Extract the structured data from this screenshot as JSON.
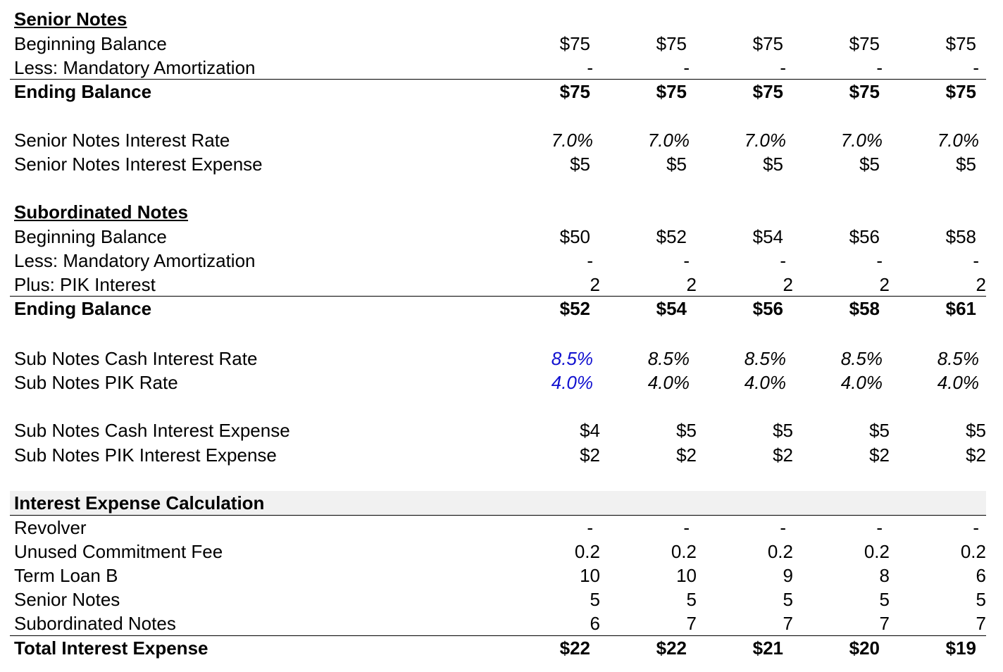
{
  "senior_notes": {
    "header": "Senior Notes",
    "beginning_balance": {
      "label": "Beginning Balance",
      "values": [
        "$75",
        "$75",
        "$75",
        "$75",
        "$75"
      ]
    },
    "amortization": {
      "label": "Less: Mandatory Amortization",
      "values": [
        "-",
        "-",
        "-",
        "-",
        "-"
      ]
    },
    "ending_balance": {
      "label": "Ending Balance",
      "values": [
        "$75",
        "$75",
        "$75",
        "$75",
        "$75"
      ]
    },
    "interest_rate": {
      "label": "Senior Notes Interest Rate",
      "values": [
        "7.0%",
        "7.0%",
        "7.0%",
        "7.0%",
        "7.0%"
      ]
    },
    "interest_expense": {
      "label": "Senior Notes Interest Expense",
      "values": [
        "$5",
        "$5",
        "$5",
        "$5",
        "$5"
      ]
    }
  },
  "subordinated_notes": {
    "header": "Subordinated Notes",
    "beginning_balance": {
      "label": "Beginning Balance",
      "values": [
        "$50",
        "$52",
        "$54",
        "$56",
        "$58"
      ]
    },
    "amortization": {
      "label": "Less: Mandatory Amortization",
      "values": [
        "-",
        "-",
        "-",
        "-",
        "-"
      ]
    },
    "pik_interest": {
      "label": "Plus: PIK Interest",
      "values": [
        "2",
        "2",
        "2",
        "2",
        "2"
      ]
    },
    "ending_balance": {
      "label": "Ending Balance",
      "values": [
        "$52",
        "$54",
        "$56",
        "$58",
        "$61"
      ]
    },
    "cash_rate": {
      "label": "Sub Notes Cash Interest Rate",
      "values": [
        "8.5%",
        "8.5%",
        "8.5%",
        "8.5%",
        "8.5%"
      ]
    },
    "pik_rate": {
      "label": "Sub Notes PIK Rate",
      "values": [
        "4.0%",
        "4.0%",
        "4.0%",
        "4.0%",
        "4.0%"
      ]
    },
    "cash_expense": {
      "label": "Sub Notes Cash Interest Expense",
      "values": [
        "$4",
        "$5",
        "$5",
        "$5",
        "$5"
      ]
    },
    "pik_expense": {
      "label": "Sub Notes PIK Interest Expense",
      "values": [
        "$2",
        "$2",
        "$2",
        "$2",
        "$2"
      ]
    }
  },
  "interest_calc": {
    "header": "Interest Expense Calculation",
    "revolver": {
      "label": "Revolver",
      "values": [
        "-",
        "-",
        "-",
        "-",
        "-"
      ]
    },
    "commitment_fee": {
      "label": "Unused Commitment Fee",
      "values": [
        "0.2",
        "0.2",
        "0.2",
        "0.2",
        "0.2"
      ]
    },
    "term_loan_b": {
      "label": "Term Loan B",
      "values": [
        "10",
        "10",
        "9",
        "8",
        "6"
      ]
    },
    "senior_notes": {
      "label": "Senior Notes",
      "values": [
        "5",
        "5",
        "5",
        "5",
        "5"
      ]
    },
    "subordinated_notes": {
      "label": "Subordinated Notes",
      "values": [
        "6",
        "7",
        "7",
        "7",
        "7"
      ]
    },
    "total": {
      "label": "Total Interest Expense",
      "values": [
        "$22",
        "$22",
        "$21",
        "$20",
        "$19"
      ]
    }
  },
  "colors": {
    "input_blue": "#1010d0",
    "shade": "#f1f1f1"
  }
}
